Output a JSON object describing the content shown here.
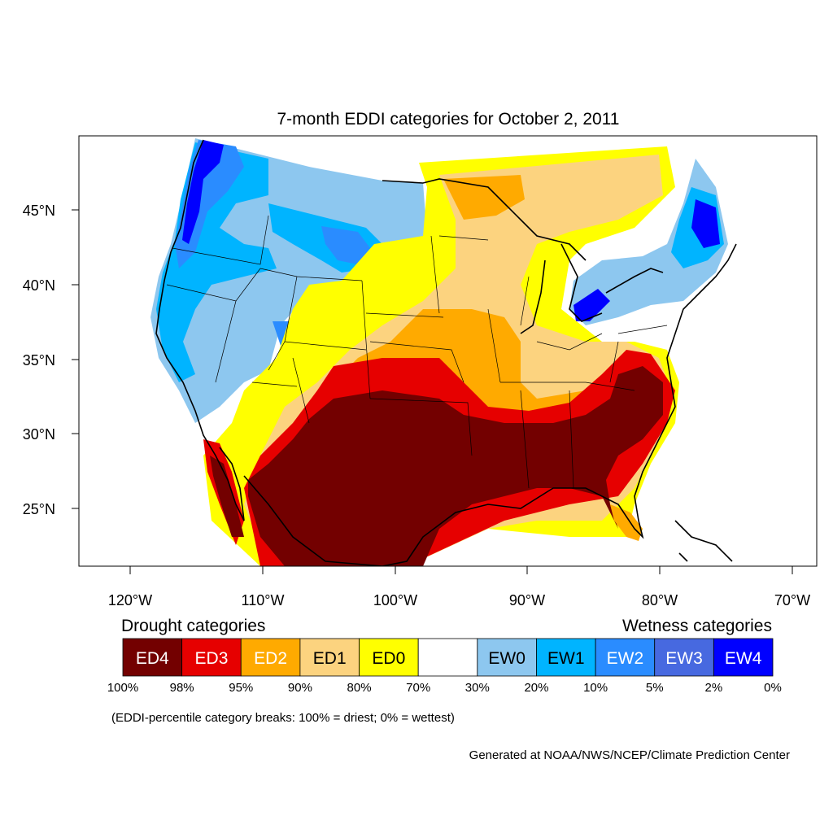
{
  "title": "7-month EDDI categories for October 2, 2011",
  "lat_labels": [
    "45°N",
    "40°N",
    "35°N",
    "30°N",
    "25°N"
  ],
  "lon_labels": [
    "120°W",
    "110°W",
    "100°W",
    "90°W",
    "80°W",
    "70°W"
  ],
  "legend": {
    "drought_heading": "Drought categories",
    "wetness_heading": "Wetness categories",
    "categories": [
      {
        "label": "ED4",
        "color": "#730000",
        "text_color": "#ffffff"
      },
      {
        "label": "ED3",
        "color": "#e60000",
        "text_color": "#ffffff"
      },
      {
        "label": "ED2",
        "color": "#ffaa00",
        "text_color": "#ffffff"
      },
      {
        "label": "ED1",
        "color": "#fcd37f",
        "text_color": "#000000"
      },
      {
        "label": "ED0",
        "color": "#ffff00",
        "text_color": "#000000"
      },
      {
        "label": "",
        "color": "#ffffff",
        "text_color": "#000000"
      },
      {
        "label": "EW0",
        "color": "#8dc7ef",
        "text_color": "#000000"
      },
      {
        "label": "EW1",
        "color": "#00b4ff",
        "text_color": "#000000"
      },
      {
        "label": "EW2",
        "color": "#2a8cff",
        "text_color": "#ffffff"
      },
      {
        "label": "EW3",
        "color": "#4769e0",
        "text_color": "#ffffff"
      },
      {
        "label": "EW4",
        "color": "#0000ff",
        "text_color": "#ffffff"
      }
    ],
    "breaks": [
      "100%",
      "98%",
      "95%",
      "90%",
      "80%",
      "70%",
      "30%",
      "20%",
      "10%",
      "5%",
      "2%",
      "0%"
    ],
    "note": "(EDDI-percentile category breaks: 100% = driest; 0% = wettest)"
  },
  "credit": "Generated at NOAA/NWS/NCEP/Climate Prediction Center"
}
